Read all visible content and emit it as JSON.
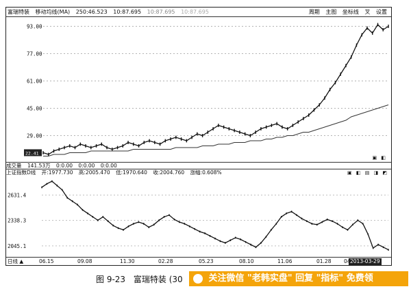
{
  "top_panel": {
    "stock_name": "富瑞特装",
    "indicator": "移动均线(MA)",
    "ma_values": [
      "250:46.523",
      "10:87.695",
      "10:87.695",
      "10:87.695"
    ],
    "menu": [
      "周期",
      "主图",
      "坐标线",
      "叉",
      "设置"
    ]
  },
  "volume_bar": {
    "label": "成交量",
    "value": "141.53万",
    "times": [
      "0:0.00",
      "0:0.00",
      "0:0.00"
    ]
  },
  "index_bar": {
    "label": "上证指数D线",
    "open": "开:1977.730",
    "high": "高:2005.470",
    "low": "低:1970.640",
    "close": "收:2004.760",
    "change": "涨幅:0.608%",
    "controls": "▣ ◧ ▤ ◨ ◩"
  },
  "upper_controls": "▣ ◧",
  "x_axis": {
    "prefix": "日线 ▲",
    "labels": [
      "06.15",
      "09.08",
      "11.30",
      "02.28",
      "05.23",
      "08.10",
      "11.06",
      "01.28",
      "04"
    ],
    "highlight": "2013-03-29"
  },
  "caption": {
    "figure": "图 9-23",
    "title": "富瑞特装 (30"
  },
  "watermark": "关注微信 \"老韩实盘\" 回复 \"指标\" 免费领",
  "chart_data": [
    {
      "type": "line",
      "name_ref": "stock price",
      "y_ticks": [
        29.0,
        45.0,
        61.0,
        77.0,
        93.0
      ],
      "ylim": [
        16,
        96
      ],
      "price_label": "22.41",
      "series": [
        {
          "name": "",
          "values": [
            19,
            18,
            20,
            21,
            22,
            23,
            22,
            24,
            23,
            22,
            23,
            24,
            22,
            21,
            22,
            23,
            25,
            24,
            23,
            25,
            26,
            25,
            24,
            26,
            27,
            28,
            27,
            26,
            28,
            30,
            29,
            31,
            33,
            35,
            34,
            33,
            32,
            31,
            30,
            29,
            31,
            33,
            34,
            35,
            36,
            34,
            33,
            35,
            37,
            39,
            41,
            44,
            47,
            51,
            56,
            60,
            65,
            70,
            75,
            82,
            88,
            92,
            89,
            94,
            91,
            93
          ]
        },
        {
          "name": "MA250",
          "values": [
            17,
            17,
            18,
            18,
            18,
            19,
            19,
            19,
            19,
            20,
            20,
            20,
            20,
            20,
            20,
            20,
            20,
            21,
            21,
            21,
            21,
            21,
            21,
            21,
            21,
            22,
            22,
            22,
            22,
            22,
            23,
            23,
            23,
            24,
            24,
            24,
            25,
            25,
            25,
            26,
            26,
            26,
            27,
            27,
            28,
            28,
            29,
            29,
            30,
            31,
            31,
            32,
            33,
            34,
            35,
            36,
            37,
            38,
            40,
            41,
            42,
            43,
            44,
            45,
            46,
            47
          ]
        }
      ]
    },
    {
      "type": "line",
      "name_ref": "shanghai index",
      "y_ticks": [
        2045.1,
        2338.3,
        2631.4
      ],
      "ylim": [
        1950,
        2800
      ],
      "series": [
        {
          "name": "",
          "values": [
            2720,
            2760,
            2790,
            2740,
            2690,
            2600,
            2560,
            2520,
            2460,
            2420,
            2380,
            2340,
            2380,
            2330,
            2280,
            2250,
            2230,
            2270,
            2300,
            2320,
            2300,
            2260,
            2290,
            2340,
            2380,
            2400,
            2350,
            2320,
            2300,
            2270,
            2240,
            2210,
            2190,
            2160,
            2130,
            2100,
            2080,
            2110,
            2140,
            2120,
            2090,
            2060,
            2030,
            2080,
            2150,
            2230,
            2300,
            2380,
            2420,
            2440,
            2400,
            2360,
            2330,
            2300,
            2290,
            2320,
            2350,
            2330,
            2300,
            2260,
            2230,
            2290,
            2340,
            2300,
            2180,
            2020,
            2060,
            2030,
            2000
          ]
        }
      ]
    }
  ]
}
